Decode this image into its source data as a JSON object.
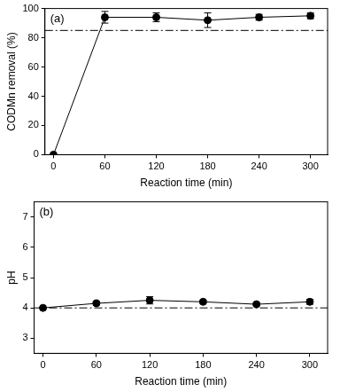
{
  "chart_data": [
    {
      "type": "line",
      "annotation": "(a)",
      "x_label": "Reaction time (min)",
      "y_label": "CODMn removal (%)",
      "x": [
        0,
        60,
        120,
        180,
        240,
        300
      ],
      "values": [
        0,
        94,
        94,
        92,
        94,
        95
      ],
      "errors": [
        0,
        4,
        3,
        5,
        2,
        2
      ],
      "threshold": 85,
      "xlim": [
        -10,
        320
      ],
      "xticks": [
        0,
        60,
        120,
        180,
        240,
        300
      ],
      "ylim": [
        0,
        100
      ],
      "yticks": [
        0,
        20,
        40,
        60,
        80,
        100
      ],
      "grid": false,
      "color": "#000000",
      "marker": "circle",
      "line_style": "solid"
    },
    {
      "type": "line",
      "annotation": "(b)",
      "x_label": "Reaction time (min)",
      "y_label": "pH",
      "x": [
        0,
        60,
        120,
        180,
        240,
        300
      ],
      "values": [
        4.0,
        4.15,
        4.25,
        4.2,
        4.12,
        4.2
      ],
      "errors": [
        0.02,
        0.05,
        0.12,
        0.05,
        0.05,
        0.08
      ],
      "threshold": 4,
      "xlim": [
        -10,
        320
      ],
      "xticks": [
        0,
        60,
        120,
        180,
        240,
        300
      ],
      "ylim": [
        2.5,
        7.5
      ],
      "yticks": [
        3,
        4,
        5,
        6,
        7
      ],
      "grid": false,
      "color": "#000000",
      "marker": "circle",
      "line_style": "solid"
    }
  ]
}
